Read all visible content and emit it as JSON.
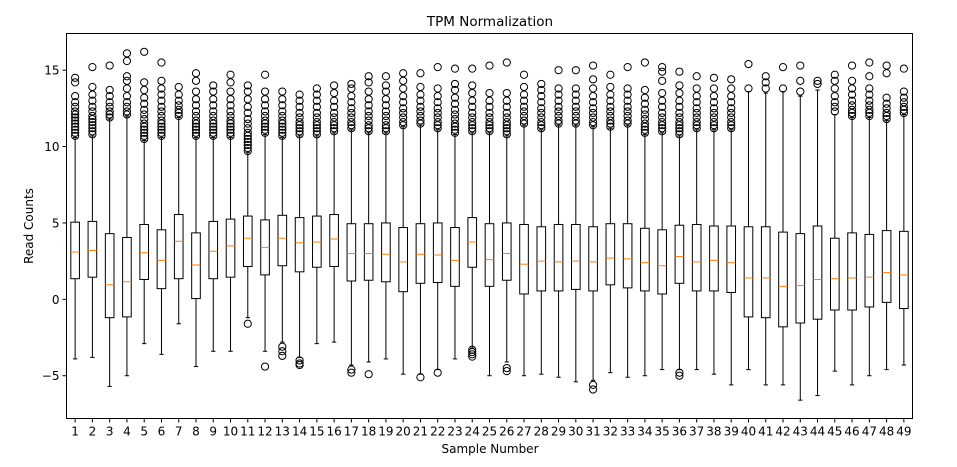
{
  "chart_data": {
    "type": "box",
    "title": "TPM Normalization",
    "xlabel": "Sample Number",
    "ylabel": "Read Counts",
    "ylim": [
      -7.8,
      17.4
    ],
    "yticks": [
      -5,
      0,
      5,
      10,
      15
    ],
    "grid": false,
    "colors": {
      "box": "#000000",
      "median": "#ff7f0e",
      "outlier": "#000000",
      "background": "#ffffff"
    },
    "categories": [
      "1",
      "2",
      "3",
      "4",
      "5",
      "6",
      "7",
      "8",
      "9",
      "10",
      "11",
      "12",
      "13",
      "14",
      "15",
      "16",
      "17",
      "18",
      "19",
      "20",
      "21",
      "22",
      "23",
      "24",
      "25",
      "26",
      "27",
      "28",
      "29",
      "30",
      "31",
      "32",
      "33",
      "34",
      "35",
      "36",
      "37",
      "38",
      "39",
      "40",
      "41",
      "42",
      "43",
      "44",
      "45",
      "46",
      "47",
      "48",
      "49"
    ],
    "boxes": [
      {
        "q1": 1.35,
        "median": 3.1,
        "q3": 5.05,
        "whisker_low": -3.9,
        "whisker_high": 10.6,
        "outliers_high": [
          10.7,
          10.9,
          11.1,
          11.3,
          11.5,
          11.7,
          11.9,
          12.1,
          12.3,
          12.6,
          12.9,
          13.3,
          14.2,
          14.5
        ],
        "outliers_low": []
      },
      {
        "q1": 1.45,
        "median": 3.2,
        "q3": 5.1,
        "whisker_low": -3.8,
        "whisker_high": 10.7,
        "outliers_high": [
          10.8,
          11.0,
          11.2,
          11.4,
          11.6,
          11.8,
          12.0,
          12.3,
          12.6,
          13.0,
          13.4,
          13.9,
          15.2
        ],
        "outliers_low": []
      },
      {
        "q1": -1.2,
        "median": 0.95,
        "q3": 4.3,
        "whisker_low": -5.7,
        "whisker_high": 11.8,
        "outliers_high": [
          11.9,
          12.1,
          12.3,
          12.6,
          12.9,
          13.3,
          13.7,
          15.3
        ],
        "outliers_low": []
      },
      {
        "q1": -1.15,
        "median": 1.15,
        "q3": 4.05,
        "whisker_low": -5.0,
        "whisker_high": 12.0,
        "outliers_high": [
          12.1,
          12.3,
          12.6,
          12.9,
          13.3,
          13.8,
          14.3,
          14.6,
          15.6,
          16.1
        ],
        "outliers_low": []
      },
      {
        "q1": 1.3,
        "median": 3.05,
        "q3": 4.9,
        "whisker_low": -2.9,
        "whisker_high": 10.4,
        "outliers_high": [
          10.5,
          10.7,
          10.9,
          11.1,
          11.3,
          11.5,
          11.8,
          12.1,
          12.4,
          12.8,
          13.2,
          13.7,
          14.2,
          16.2
        ],
        "outliers_low": []
      },
      {
        "q1": 0.7,
        "median": 2.55,
        "q3": 4.55,
        "whisker_low": -3.6,
        "whisker_high": 10.6,
        "outliers_high": [
          10.7,
          10.9,
          11.1,
          11.3,
          11.5,
          11.7,
          12.0,
          12.3,
          12.6,
          13.0,
          13.4,
          13.8,
          14.3,
          15.5
        ],
        "outliers_low": []
      },
      {
        "q1": 1.35,
        "median": 3.8,
        "q3": 5.55,
        "whisker_low": -1.6,
        "whisker_high": 11.9,
        "outliers_high": [
          12.0,
          12.2,
          12.4,
          12.7,
          13.0,
          13.4,
          13.9
        ],
        "outliers_low": []
      },
      {
        "q1": 0.05,
        "median": 2.25,
        "q3": 4.35,
        "whisker_low": -4.4,
        "whisker_high": 10.6,
        "outliers_high": [
          10.7,
          10.9,
          11.1,
          11.3,
          11.5,
          11.7,
          12.0,
          12.3,
          12.7,
          13.1,
          13.6,
          14.3,
          14.8
        ],
        "outliers_low": []
      },
      {
        "q1": 1.35,
        "median": 3.15,
        "q3": 5.1,
        "whisker_low": -3.4,
        "whisker_high": 10.6,
        "outliers_high": [
          10.7,
          10.9,
          11.1,
          11.3,
          11.5,
          11.7,
          12.0,
          12.3,
          12.7,
          13.1,
          13.6,
          14.0
        ],
        "outliers_low": []
      },
      {
        "q1": 1.45,
        "median": 3.5,
        "q3": 5.25,
        "whisker_low": -3.4,
        "whisker_high": 10.6,
        "outliers_high": [
          10.7,
          10.9,
          11.1,
          11.3,
          11.5,
          11.7,
          12.0,
          12.3,
          12.7,
          13.1,
          13.6,
          14.2,
          14.7
        ],
        "outliers_low": []
      },
      {
        "q1": 2.15,
        "median": 4.0,
        "q3": 5.45,
        "whisker_low": -1.2,
        "whisker_high": 9.6,
        "outliers_high": [
          9.7,
          9.9,
          10.1,
          10.3,
          10.5,
          10.7,
          10.9,
          11.2,
          11.5,
          11.8,
          12.2,
          12.6,
          13.1,
          13.6,
          14.0
        ],
        "outliers_low": [
          -1.6
        ]
      },
      {
        "q1": 1.6,
        "median": 3.4,
        "q3": 5.2,
        "whisker_low": -3.4,
        "whisker_high": 10.8,
        "outliers_high": [
          10.9,
          11.1,
          11.3,
          11.5,
          11.7,
          12.0,
          12.3,
          12.7,
          13.1,
          13.6,
          14.7
        ],
        "outliers_low": [
          -4.4
        ]
      },
      {
        "q1": 2.2,
        "median": 4.0,
        "q3": 5.5,
        "whisker_low": -2.8,
        "whisker_high": 10.6,
        "outliers_high": [
          10.7,
          10.9,
          11.1,
          11.3,
          11.5,
          11.7,
          12.0,
          12.3,
          12.7,
          13.1,
          13.6
        ],
        "outliers_low": [
          -3.1,
          -3.4,
          -3.7
        ]
      },
      {
        "q1": 1.8,
        "median": 3.7,
        "q3": 5.35,
        "whisker_low": -3.8,
        "whisker_high": 10.7,
        "outliers_high": [
          10.8,
          11.0,
          11.2,
          11.4,
          11.6,
          11.9,
          12.2,
          12.6,
          13.0,
          13.4
        ],
        "outliers_low": [
          -4.0,
          -4.2,
          -4.3
        ]
      },
      {
        "q1": 2.1,
        "median": 3.75,
        "q3": 5.45,
        "whisker_low": -2.9,
        "whisker_high": 10.7,
        "outliers_high": [
          10.8,
          11.0,
          11.2,
          11.4,
          11.6,
          11.9,
          12.2,
          12.6,
          13.0,
          13.4,
          13.8
        ],
        "outliers_low": []
      },
      {
        "q1": 2.15,
        "median": 3.95,
        "q3": 5.55,
        "whisker_low": -2.8,
        "whisker_high": 10.9,
        "outliers_high": [
          11.0,
          11.2,
          11.4,
          11.6,
          11.9,
          12.2,
          12.6,
          13.0,
          13.5,
          14.0
        ],
        "outliers_low": []
      },
      {
        "q1": 1.2,
        "median": 3.0,
        "q3": 4.95,
        "whisker_low": -4.3,
        "whisker_high": 11.1,
        "outliers_high": [
          11.2,
          11.4,
          11.6,
          11.9,
          12.2,
          12.5,
          12.9,
          13.3,
          13.8,
          14.1
        ],
        "outliers_low": [
          -4.6,
          -4.8
        ]
      },
      {
        "q1": 1.25,
        "median": 3.0,
        "q3": 4.95,
        "whisker_low": -4.1,
        "whisker_high": 10.9,
        "outliers_high": [
          11.0,
          11.2,
          11.4,
          11.7,
          12.0,
          12.3,
          12.7,
          13.1,
          13.6,
          14.2,
          14.6
        ],
        "outliers_low": [
          -4.9
        ]
      },
      {
        "q1": 1.15,
        "median": 2.95,
        "q3": 5.0,
        "whisker_low": -3.9,
        "whisker_high": 10.9,
        "outliers_high": [
          11.0,
          11.2,
          11.4,
          11.7,
          12.0,
          12.3,
          12.7,
          13.1,
          13.6,
          14.0,
          14.6
        ],
        "outliers_low": []
      },
      {
        "q1": 0.5,
        "median": 2.45,
        "q3": 4.7,
        "whisker_low": -4.9,
        "whisker_high": 11.3,
        "outliers_high": [
          11.4,
          11.6,
          11.9,
          12.2,
          12.5,
          12.9,
          13.3,
          13.8,
          14.3,
          14.8
        ],
        "outliers_low": []
      },
      {
        "q1": 1.05,
        "median": 2.95,
        "q3": 4.95,
        "whisker_low": -4.9,
        "whisker_high": 11.4,
        "outliers_high": [
          11.5,
          11.7,
          12.0,
          12.3,
          12.6,
          13.0,
          13.4,
          13.9,
          14.8
        ],
        "outliers_low": [
          -5.1
        ]
      },
      {
        "q1": 1.1,
        "median": 2.9,
        "q3": 5.0,
        "whisker_low": -4.6,
        "whisker_high": 11.1,
        "outliers_high": [
          11.2,
          11.4,
          11.6,
          11.9,
          12.2,
          12.5,
          12.9,
          13.3,
          13.8,
          15.2
        ],
        "outliers_low": [
          -4.8
        ]
      },
      {
        "q1": 0.85,
        "median": 2.55,
        "q3": 4.7,
        "whisker_low": -3.9,
        "whisker_high": 10.8,
        "outliers_high": [
          10.9,
          11.1,
          11.3,
          11.5,
          11.8,
          12.1,
          12.4,
          12.8,
          13.2,
          13.7,
          14.1,
          15.1
        ],
        "outliers_low": []
      },
      {
        "q1": 2.1,
        "median": 3.75,
        "q3": 5.35,
        "whisker_low": -3.2,
        "whisker_high": 10.9,
        "outliers_high": [
          11.0,
          11.2,
          11.4,
          11.6,
          11.9,
          12.2,
          12.6,
          13.0,
          13.5,
          14.0,
          15.1
        ],
        "outliers_low": [
          -3.3,
          -3.45,
          -3.6,
          -3.75
        ]
      },
      {
        "q1": 0.85,
        "median": 2.6,
        "q3": 4.95,
        "whisker_low": -5.0,
        "whisker_high": 10.9,
        "outliers_high": [
          11.0,
          11.2,
          11.4,
          11.6,
          11.9,
          12.2,
          12.6,
          13.0,
          13.5,
          15.3
        ],
        "outliers_low": []
      },
      {
        "q1": 1.25,
        "median": 3.0,
        "q3": 5.0,
        "whisker_low": -4.1,
        "whisker_high": 10.7,
        "outliers_high": [
          10.8,
          11.0,
          11.2,
          11.4,
          11.6,
          11.9,
          12.2,
          12.6,
          13.0,
          13.5,
          15.5
        ],
        "outliers_low": [
          -4.5,
          -4.7
        ]
      },
      {
        "q1": 0.35,
        "median": 2.3,
        "q3": 4.9,
        "whisker_low": -5.0,
        "whisker_high": 11.4,
        "outliers_high": [
          11.5,
          11.7,
          12.0,
          12.3,
          12.6,
          13.0,
          13.4,
          13.9,
          14.7
        ],
        "outliers_low": []
      },
      {
        "q1": 0.55,
        "median": 2.5,
        "q3": 4.75,
        "whisker_low": -4.9,
        "whisker_high": 11.1,
        "outliers_high": [
          11.2,
          11.4,
          11.6,
          11.9,
          12.2,
          12.5,
          12.9,
          13.3,
          13.7,
          14.1
        ],
        "outliers_low": []
      },
      {
        "q1": 0.55,
        "median": 2.45,
        "q3": 4.9,
        "whisker_low": -5.1,
        "whisker_high": 11.4,
        "outliers_high": [
          11.5,
          11.7,
          12.0,
          12.3,
          12.6,
          13.0,
          13.4,
          13.8,
          15.0
        ],
        "outliers_low": []
      },
      {
        "q1": 0.65,
        "median": 2.5,
        "q3": 4.9,
        "whisker_low": -5.4,
        "whisker_high": 11.4,
        "outliers_high": [
          11.5,
          11.7,
          12.0,
          12.3,
          12.6,
          13.0,
          13.4,
          13.8,
          15.0
        ],
        "outliers_low": []
      },
      {
        "q1": 0.55,
        "median": 2.45,
        "q3": 4.75,
        "whisker_low": -5.3,
        "whisker_high": 11.3,
        "outliers_high": [
          11.4,
          11.6,
          11.9,
          12.2,
          12.5,
          12.9,
          13.3,
          13.8,
          14.4,
          15.3
        ],
        "outliers_low": [
          -5.6,
          -5.9
        ]
      },
      {
        "q1": 0.95,
        "median": 2.7,
        "q3": 4.95,
        "whisker_low": -4.8,
        "whisker_high": 11.2,
        "outliers_high": [
          11.3,
          11.5,
          11.7,
          12.0,
          12.3,
          12.6,
          13.0,
          13.4,
          13.9,
          14.7
        ],
        "outliers_low": []
      },
      {
        "q1": 0.75,
        "median": 2.65,
        "q3": 4.95,
        "whisker_low": -5.1,
        "whisker_high": 11.4,
        "outliers_high": [
          11.5,
          11.7,
          12.0,
          12.3,
          12.6,
          13.0,
          13.4,
          13.8,
          15.2
        ],
        "outliers_low": []
      },
      {
        "q1": 0.55,
        "median": 2.4,
        "q3": 4.65,
        "whisker_low": -5.0,
        "whisker_high": 10.8,
        "outliers_high": [
          10.9,
          11.1,
          11.3,
          11.5,
          11.8,
          12.1,
          12.4,
          12.8,
          13.2,
          13.7,
          15.5
        ],
        "outliers_low": []
      },
      {
        "q1": 0.35,
        "median": 2.2,
        "q3": 4.55,
        "whisker_low": -4.6,
        "whisker_high": 10.9,
        "outliers_high": [
          11.0,
          11.2,
          11.4,
          11.6,
          11.9,
          12.2,
          12.6,
          13.0,
          13.5,
          14.3,
          14.9,
          15.2
        ],
        "outliers_low": []
      },
      {
        "q1": 1.05,
        "median": 2.8,
        "q3": 4.85,
        "whisker_low": -4.6,
        "whisker_high": 10.7,
        "outliers_high": [
          10.8,
          11.0,
          11.2,
          11.4,
          11.6,
          11.9,
          12.2,
          12.6,
          13.0,
          13.5,
          14.0,
          14.9
        ],
        "outliers_low": [
          -4.8,
          -5.0
        ]
      },
      {
        "q1": 0.55,
        "median": 2.45,
        "q3": 4.9,
        "whisker_low": -4.6,
        "whisker_high": 11.1,
        "outliers_high": [
          11.2,
          11.4,
          11.6,
          11.9,
          12.2,
          12.5,
          12.9,
          13.3,
          13.8,
          14.6
        ],
        "outliers_low": []
      },
      {
        "q1": 0.55,
        "median": 2.55,
        "q3": 4.8,
        "whisker_low": -4.9,
        "whisker_high": 11.1,
        "outliers_high": [
          11.2,
          11.4,
          11.6,
          11.9,
          12.2,
          12.5,
          12.9,
          13.3,
          13.8,
          14.5
        ],
        "outliers_low": []
      },
      {
        "q1": 0.45,
        "median": 2.4,
        "q3": 4.8,
        "whisker_low": -5.6,
        "whisker_high": 11.1,
        "outliers_high": [
          11.2,
          11.4,
          11.6,
          11.9,
          12.2,
          12.5,
          12.9,
          13.3,
          13.8,
          14.4
        ],
        "outliers_low": []
      },
      {
        "q1": -1.15,
        "median": 1.4,
        "q3": 4.75,
        "whisker_low": -4.6,
        "whisker_high": 13.6,
        "outliers_high": [
          13.8,
          15.4
        ],
        "outliers_low": []
      },
      {
        "q1": -1.2,
        "median": 1.4,
        "q3": 4.75,
        "whisker_low": -5.6,
        "whisker_high": 13.5,
        "outliers_high": [
          13.8,
          14.2,
          14.6
        ],
        "outliers_low": []
      },
      {
        "q1": -1.8,
        "median": 0.85,
        "q3": 4.4,
        "whisker_low": -5.6,
        "whisker_high": 13.6,
        "outliers_high": [
          13.8,
          15.2
        ],
        "outliers_low": []
      },
      {
        "q1": -1.55,
        "median": 0.9,
        "q3": 4.3,
        "whisker_low": -6.6,
        "whisker_high": 13.3,
        "outliers_high": [
          13.6,
          14.3,
          15.3
        ],
        "outliers_low": []
      },
      {
        "q1": -1.3,
        "median": 1.3,
        "q3": 4.8,
        "whisker_low": -6.3,
        "whisker_high": 13.7,
        "outliers_high": [
          14.1,
          14.3
        ],
        "outliers_low": []
      },
      {
        "q1": -0.7,
        "median": 1.35,
        "q3": 4.0,
        "whisker_low": -4.7,
        "whisker_high": 12.1,
        "outliers_high": [
          12.3,
          12.6,
          12.9,
          13.3,
          13.8,
          14.3,
          14.7
        ],
        "outliers_low": []
      },
      {
        "q1": -0.7,
        "median": 1.4,
        "q3": 4.35,
        "whisker_low": -5.6,
        "whisker_high": 11.9,
        "outliers_high": [
          12.0,
          12.2,
          12.4,
          12.7,
          13.0,
          13.4,
          13.8,
          14.3,
          15.3
        ],
        "outliers_low": []
      },
      {
        "q1": -0.5,
        "median": 1.45,
        "q3": 4.25,
        "whisker_low": -5.0,
        "whisker_high": 11.9,
        "outliers_high": [
          12.0,
          12.2,
          12.4,
          12.7,
          13.0,
          13.4,
          13.8,
          14.6,
          15.5
        ],
        "outliers_low": []
      },
      {
        "q1": -0.2,
        "median": 1.75,
        "q3": 4.5,
        "whisker_low": -4.6,
        "whisker_high": 11.7,
        "outliers_high": [
          11.8,
          12.0,
          12.2,
          12.5,
          12.8,
          13.2,
          14.8,
          15.3
        ],
        "outliers_low": []
      },
      {
        "q1": -0.6,
        "median": 1.6,
        "q3": 4.45,
        "whisker_low": -4.3,
        "whisker_high": 12.1,
        "outliers_high": [
          12.2,
          12.4,
          12.6,
          12.9,
          13.2,
          13.6,
          15.1
        ],
        "outliers_low": []
      }
    ]
  }
}
